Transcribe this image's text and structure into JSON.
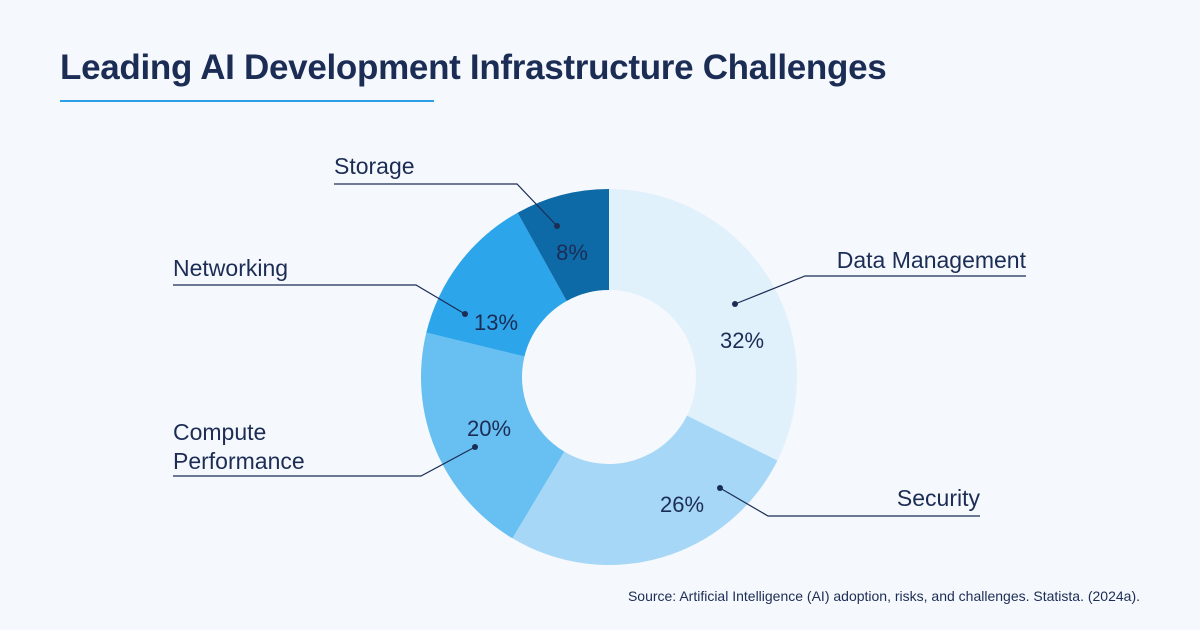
{
  "title": "Leading AI Development Infrastructure Challenges",
  "source": "Source: Artificial Intelligence (AI) adoption, risks, and challenges. Statista. (2024a).",
  "colors": {
    "title": "#1c2d55",
    "accent": "#2a9fe6",
    "background": "#f5f8fc"
  },
  "chart_data": {
    "type": "pie",
    "donut": true,
    "unit": "%",
    "slices": [
      {
        "label": "Data Management",
        "value": 32,
        "display": "32%",
        "color": "#e1f1fc"
      },
      {
        "label": "Security",
        "value": 26,
        "display": "26%",
        "color": "#a6d7f6"
      },
      {
        "label": "Compute\nPerformance",
        "value": 20,
        "display": "20%",
        "color": "#68bff2"
      },
      {
        "label": "Networking",
        "value": 13,
        "display": "13%",
        "color": "#2ca5ea"
      },
      {
        "label": "Storage",
        "value": 8,
        "display": "8%",
        "color": "#0d6aa6"
      }
    ]
  }
}
